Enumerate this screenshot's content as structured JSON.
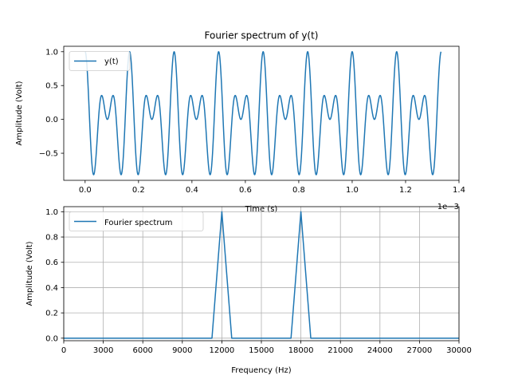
{
  "chart_data": [
    {
      "type": "line",
      "title": "Fourier spectrum of y(t)",
      "xlabel": "Time (s)",
      "ylabel": "Amplitude (Volt)",
      "x_offset_label": "1e−3",
      "xlim": [
        -0.08,
        1.4
      ],
      "ylim": [
        -0.9,
        1.08
      ],
      "x_ticks": [
        0.0,
        0.2,
        0.4,
        0.6,
        0.8,
        1.0,
        1.2,
        1.4
      ],
      "x_tick_labels": [
        "0.0",
        "0.2",
        "0.4",
        "0.6",
        "0.8",
        "1.0",
        "1.2",
        "1.4"
      ],
      "y_ticks": [
        -0.5,
        0.0,
        0.5,
        1.0
      ],
      "y_tick_labels": [
        "−0.5",
        "0.0",
        "0.5",
        "1.0"
      ],
      "grid": false,
      "legend": "top-left",
      "color": "#1f77b4",
      "series": [
        {
          "name": "y(t)",
          "signal": "0.5·cos(2π·12000·t) + 0.5·cos(2π·18000·t)",
          "components": [
            {
              "frequency_hz": 12000,
              "amplitude": 0.5
            },
            {
              "frequency_hz": 18000,
              "amplitude": 0.5
            }
          ],
          "t_range_ms": [
            0.0,
            1.333
          ]
        }
      ]
    },
    {
      "type": "line",
      "title": "",
      "xlabel": "Frequency (Hz)",
      "ylabel": "Amplitude (Volt)",
      "xlim": [
        0,
        30000
      ],
      "ylim": [
        -0.02,
        1.04
      ],
      "x_ticks": [
        0,
        3000,
        6000,
        9000,
        12000,
        15000,
        18000,
        21000,
        24000,
        27000,
        30000
      ],
      "x_tick_labels": [
        "0",
        "3000",
        "6000",
        "9000",
        "12000",
        "15000",
        "18000",
        "21000",
        "24000",
        "27000",
        "30000"
      ],
      "y_ticks": [
        0.0,
        0.2,
        0.4,
        0.6,
        0.8,
        1.0
      ],
      "y_tick_labels": [
        "0.0",
        "0.2",
        "0.4",
        "0.6",
        "0.8",
        "1.0"
      ],
      "grid": true,
      "legend": "top-left",
      "color": "#1f77b4",
      "series": [
        {
          "name": "Fourier spectrum",
          "x": [
            0,
            11250,
            12000,
            12750,
            17250,
            18000,
            18750,
            30000
          ],
          "y": [
            0,
            0,
            1.0,
            0,
            0,
            1.0,
            0,
            0
          ]
        }
      ]
    }
  ]
}
